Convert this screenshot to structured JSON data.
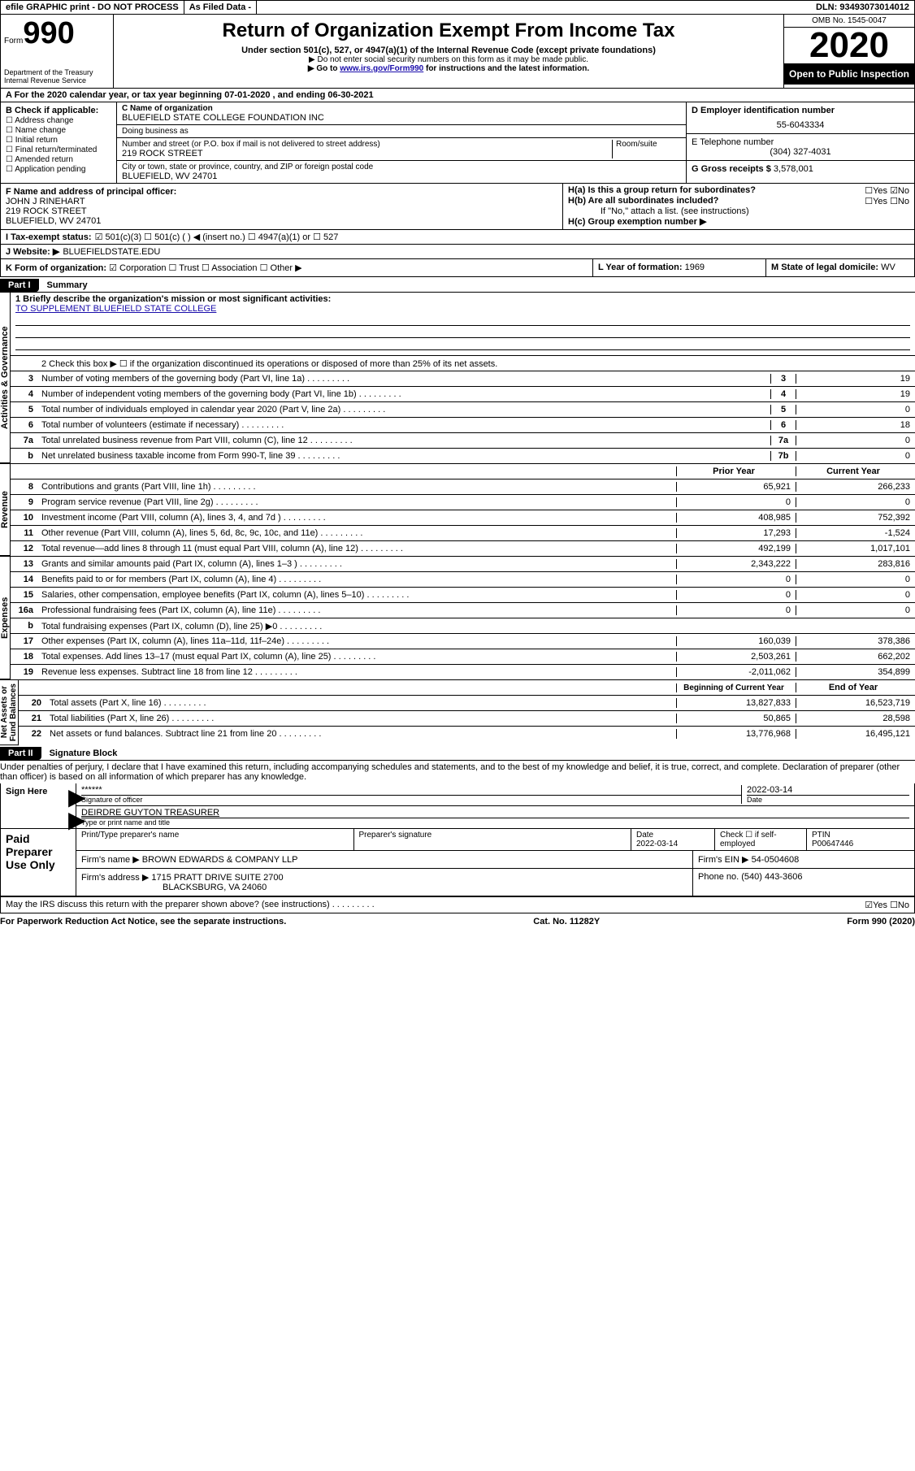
{
  "topbar": {
    "efile": "efile GRAPHIC print - DO NOT PROCESS",
    "asfiled": "As Filed Data -",
    "dln_label": "DLN:",
    "dln": "93493073014012"
  },
  "header": {
    "form_label": "Form",
    "form_num": "990",
    "treasury": "Department of the Treasury\nInternal Revenue Service",
    "title": "Return of Organization Exempt From Income Tax",
    "sub": "Under section 501(c), 527, or 4947(a)(1) of the Internal Revenue Code (except private foundations)",
    "note1": "▶ Do not enter social security numbers on this form as it may be made public.",
    "note2_pre": "▶ Go to ",
    "note2_link": "www.irs.gov/Form990",
    "note2_post": " for instructions and the latest information.",
    "omb": "OMB No. 1545-0047",
    "year": "2020",
    "open": "Open to Public Inspection"
  },
  "line_a": "A  For the 2020 calendar year, or tax year beginning 07-01-2020  , and ending 06-30-2021",
  "box_b": {
    "label": "B Check if applicable:",
    "items": [
      "☐ Address change",
      "☐ Name change",
      "☐ Initial return",
      "☐ Final return/terminated",
      "☐ Amended return",
      "☐ Application pending"
    ]
  },
  "box_c": {
    "name_label": "C Name of organization",
    "name": "BLUEFIELD STATE COLLEGE FOUNDATION INC",
    "dba_label": "Doing business as",
    "street_label": "Number and street (or P.O. box if mail is not delivered to street address)",
    "room_label": "Room/suite",
    "street": "219 ROCK STREET",
    "city_label": "City or town, state or province, country, and ZIP or foreign postal code",
    "city": "BLUEFIELD, WV  24701"
  },
  "box_d": {
    "label": "D Employer identification number",
    "value": "55-6043334"
  },
  "box_e": {
    "label": "E Telephone number",
    "value": "(304) 327-4031"
  },
  "box_g": {
    "label": "G Gross receipts $",
    "value": "3,578,001"
  },
  "box_f": {
    "label": "F  Name and address of principal officer:",
    "name": "JOHN J RINEHART",
    "street": "219 ROCK STREET",
    "city": "BLUEFIELD, WV  24701"
  },
  "box_h": {
    "a": "H(a)  Is this a group return for subordinates?",
    "a_ans": "☐Yes  ☑No",
    "b": "H(b)  Are all subordinates included?",
    "b_ans": "☐Yes ☐No",
    "b_note": "If \"No,\" attach a list. (see instructions)",
    "c": "H(c)  Group exemption number ▶"
  },
  "line_i": {
    "label": "I  Tax-exempt status:",
    "opts": "☑ 501(c)(3)   ☐ 501(c) (  ) ◀ (insert no.)   ☐ 4947(a)(1) or   ☐ 527"
  },
  "line_j": {
    "label": "J  Website: ▶",
    "value": "BLUEFIELDSTATE.EDU"
  },
  "line_k": {
    "label": "K Form of organization:",
    "opts": "☑ Corporation  ☐ Trust  ☐ Association  ☐ Other ▶"
  },
  "line_l": {
    "label": "L Year of formation:",
    "value": "1969"
  },
  "line_m": {
    "label": "M State of legal domicile:",
    "value": "WV"
  },
  "part1": {
    "tab": "Part I",
    "title": "Summary"
  },
  "mission": {
    "q1": "1 Briefly describe the organization's mission or most significant activities:",
    "text": "TO SUPPLEMENT BLUEFIELD STATE COLLEGE",
    "q2": "2  Check this box ▶ ☐ if the organization discontinued its operations or disposed of more than 25% of its net assets."
  },
  "gov_rows": [
    {
      "n": "3",
      "lbl": "Number of voting members of the governing body (Part VI, line 1a)",
      "num": "3",
      "val": "19"
    },
    {
      "n": "4",
      "lbl": "Number of independent voting members of the governing body (Part VI, line 1b)",
      "num": "4",
      "val": "19"
    },
    {
      "n": "5",
      "lbl": "Total number of individuals employed in calendar year 2020 (Part V, line 2a)",
      "num": "5",
      "val": "0"
    },
    {
      "n": "6",
      "lbl": "Total number of volunteers (estimate if necessary)",
      "num": "6",
      "val": "18"
    },
    {
      "n": "7a",
      "lbl": "Total unrelated business revenue from Part VIII, column (C), line 12",
      "num": "7a",
      "val": "0"
    },
    {
      "n": "b",
      "lbl": "Net unrelated business taxable income from Form 990-T, line 39",
      "num": "7b",
      "val": "0"
    }
  ],
  "col_hdrs": {
    "prior": "Prior Year",
    "current": "Current Year"
  },
  "rev_rows": [
    {
      "n": "8",
      "lbl": "Contributions and grants (Part VIII, line 1h)",
      "p": "65,921",
      "c": "266,233"
    },
    {
      "n": "9",
      "lbl": "Program service revenue (Part VIII, line 2g)",
      "p": "0",
      "c": "0"
    },
    {
      "n": "10",
      "lbl": "Investment income (Part VIII, column (A), lines 3, 4, and 7d )",
      "p": "408,985",
      "c": "752,392"
    },
    {
      "n": "11",
      "lbl": "Other revenue (Part VIII, column (A), lines 5, 6d, 8c, 9c, 10c, and 11e)",
      "p": "17,293",
      "c": "-1,524"
    },
    {
      "n": "12",
      "lbl": "Total revenue—add lines 8 through 11 (must equal Part VIII, column (A), line 12)",
      "p": "492,199",
      "c": "1,017,101"
    }
  ],
  "exp_rows": [
    {
      "n": "13",
      "lbl": "Grants and similar amounts paid (Part IX, column (A), lines 1–3 )",
      "p": "2,343,222",
      "c": "283,816"
    },
    {
      "n": "14",
      "lbl": "Benefits paid to or for members (Part IX, column (A), line 4)",
      "p": "0",
      "c": "0"
    },
    {
      "n": "15",
      "lbl": "Salaries, other compensation, employee benefits (Part IX, column (A), lines 5–10)",
      "p": "0",
      "c": "0"
    },
    {
      "n": "16a",
      "lbl": "Professional fundraising fees (Part IX, column (A), line 11e)",
      "p": "0",
      "c": "0"
    },
    {
      "n": "b",
      "lbl": "Total fundraising expenses (Part IX, column (D), line 25) ▶0",
      "p": "",
      "c": ""
    },
    {
      "n": "17",
      "lbl": "Other expenses (Part IX, column (A), lines 11a–11d, 11f–24e)",
      "p": "160,039",
      "c": "378,386"
    },
    {
      "n": "18",
      "lbl": "Total expenses. Add lines 13–17 (must equal Part IX, column (A), line 25)",
      "p": "2,503,261",
      "c": "662,202"
    },
    {
      "n": "19",
      "lbl": "Revenue less expenses. Subtract line 18 from line 12",
      "p": "-2,011,062",
      "c": "354,899"
    }
  ],
  "na_hdrs": {
    "begin": "Beginning of Current Year",
    "end": "End of Year"
  },
  "na_rows": [
    {
      "n": "20",
      "lbl": "Total assets (Part X, line 16)",
      "p": "13,827,833",
      "c": "16,523,719"
    },
    {
      "n": "21",
      "lbl": "Total liabilities (Part X, line 26)",
      "p": "50,865",
      "c": "28,598"
    },
    {
      "n": "22",
      "lbl": "Net assets or fund balances. Subtract line 21 from line 20",
      "p": "13,776,968",
      "c": "16,495,121"
    }
  ],
  "vlabels": {
    "gov": "Activities & Governance",
    "rev": "Revenue",
    "exp": "Expenses",
    "na": "Net Assets or\nFund Balances"
  },
  "part2": {
    "tab": "Part II",
    "title": "Signature Block"
  },
  "sig_decl": "Under penalties of perjury, I declare that I have examined this return, including accompanying schedules and statements, and to the best of my knowledge and belief, it is true, correct, and complete. Declaration of preparer (other than officer) is based on all information of which preparer has any knowledge.",
  "sign_here": {
    "lbl": "Sign Here",
    "stars": "******",
    "sig_of_officer": "Signature of officer",
    "date": "2022-03-14",
    "date_lbl": "Date",
    "name": "DEIRDRE GUYTON TREASURER",
    "name_lbl": "Type or print name and title"
  },
  "preparer": {
    "lbl": "Paid Preparer Use Only",
    "col1": "Print/Type preparer's name",
    "col2": "Preparer's signature",
    "col3": "Date",
    "date": "2022-03-14",
    "col4": "Check ☐ if self-employed",
    "ptin_lbl": "PTIN",
    "ptin": "P00647446",
    "firm_name_lbl": "Firm's name      ▶",
    "firm_name": "BROWN EDWARDS & COMPANY LLP",
    "firm_ein_lbl": "Firm's EIN ▶",
    "firm_ein": "54-0504608",
    "firm_addr_lbl": "Firm's address ▶",
    "firm_addr": "1715 PRATT DRIVE SUITE 2700",
    "firm_city": "BLACKSBURG, VA  24060",
    "phone_lbl": "Phone no.",
    "phone": "(540) 443-3606"
  },
  "discuss": {
    "q": "May the IRS discuss this return with the preparer shown above? (see instructions)",
    "ans": "☑Yes  ☐No"
  },
  "footer": {
    "left": "For Paperwork Reduction Act Notice, see the separate instructions.",
    "mid": "Cat. No. 11282Y",
    "right": "Form 990 (2020)"
  }
}
